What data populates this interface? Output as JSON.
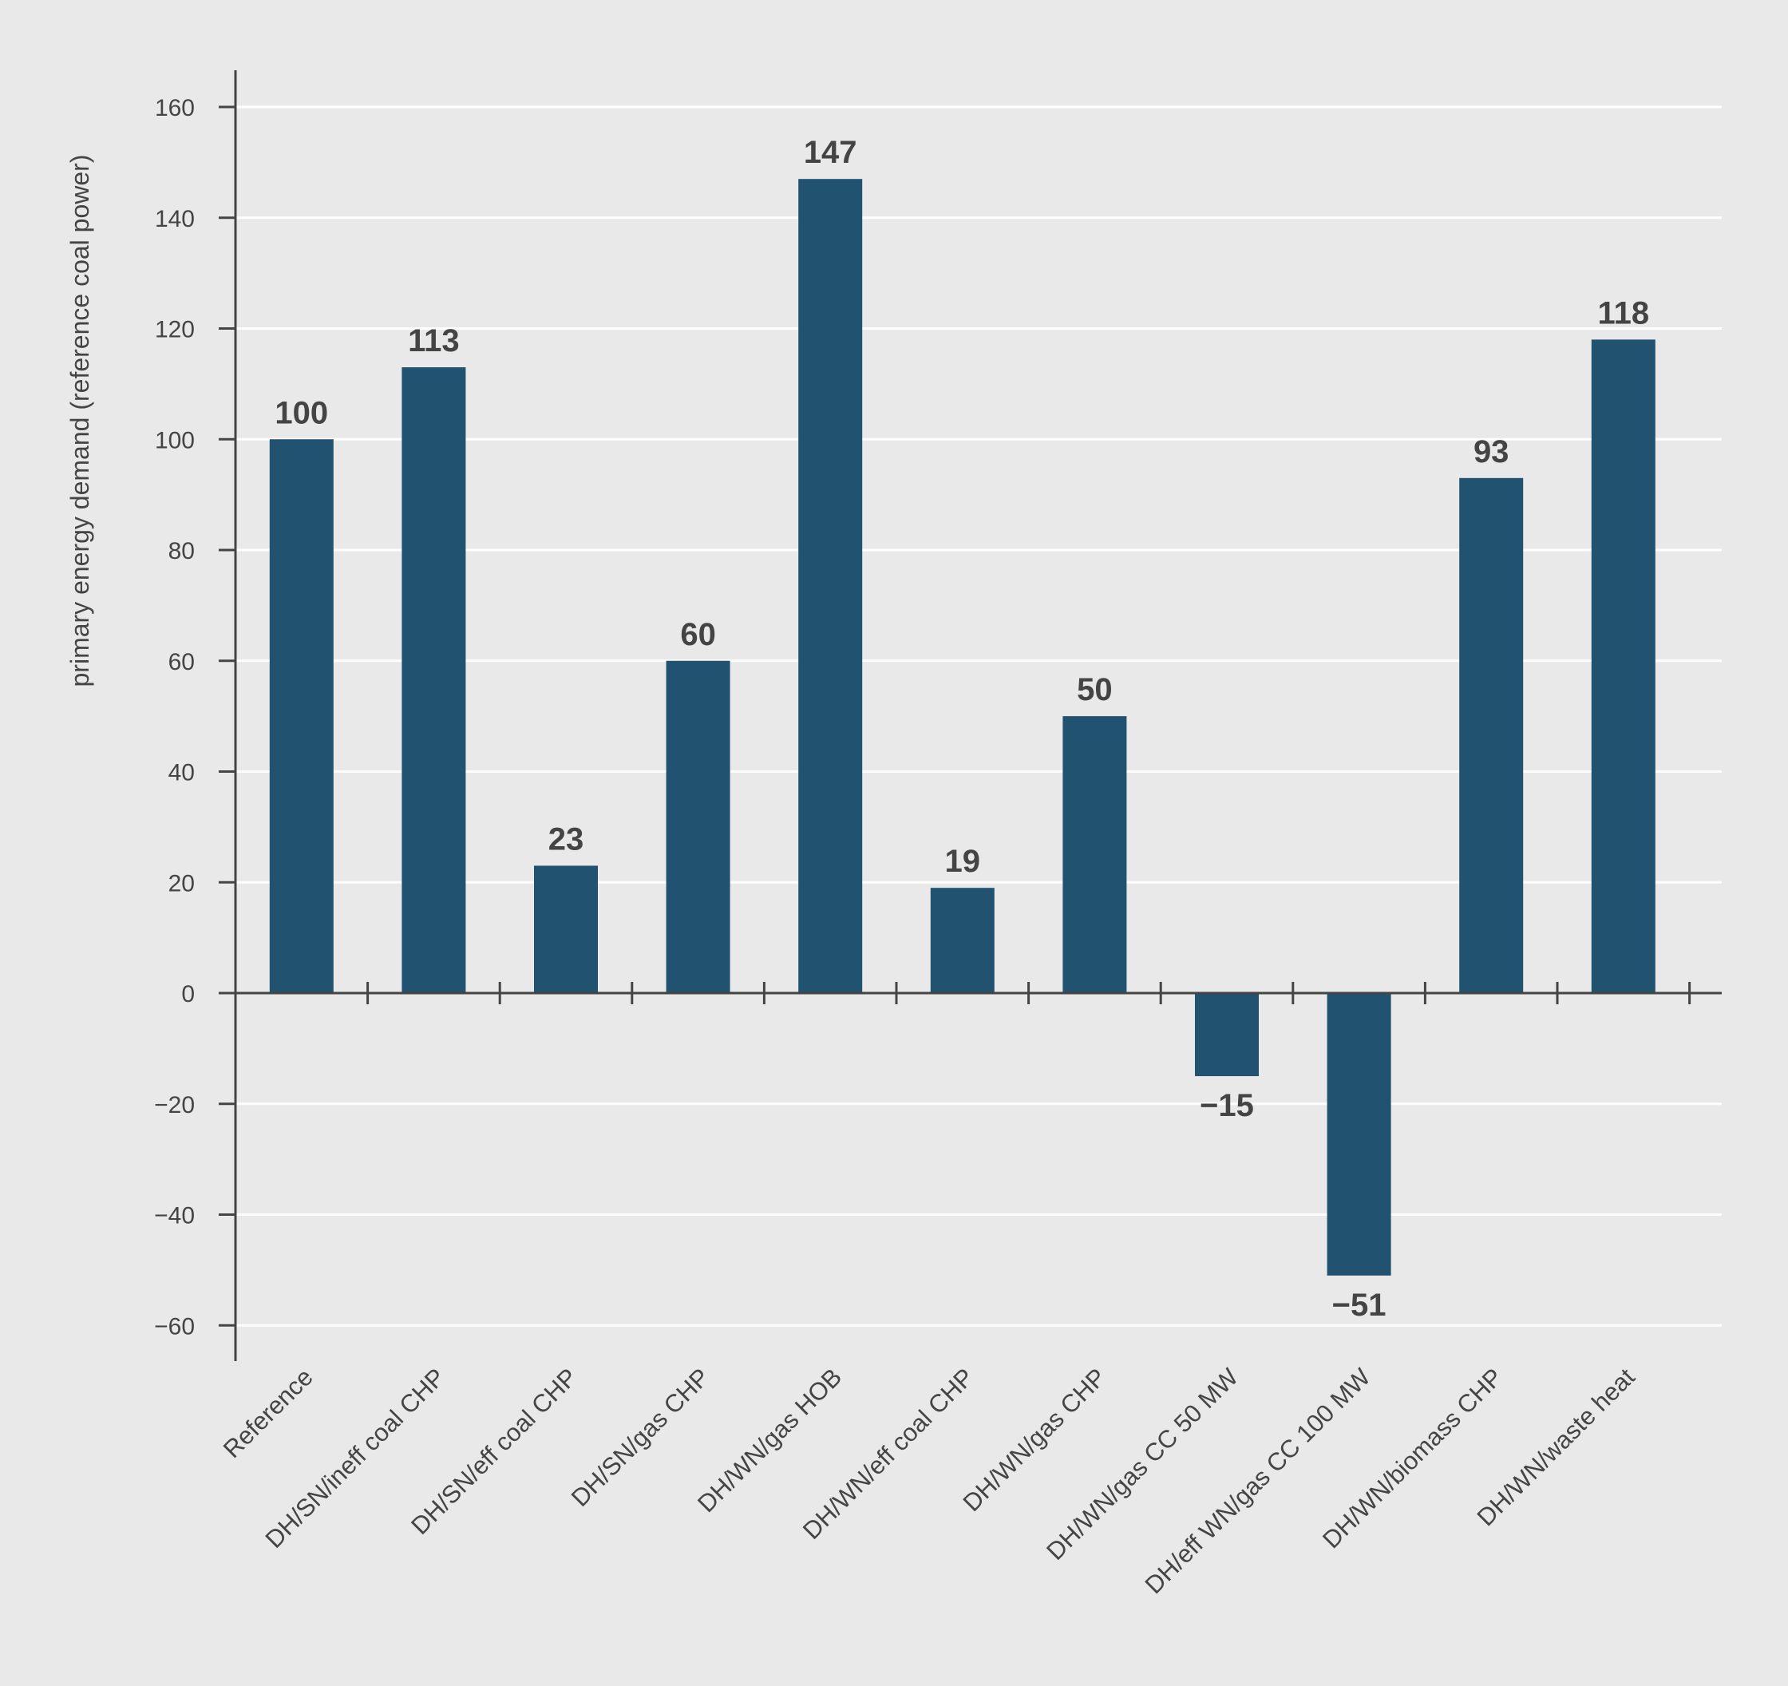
{
  "chart_data": {
    "type": "bar",
    "title": "",
    "xlabel": "",
    "ylabel": "primary energy demand (reference coal power)",
    "ylim": [
      -66,
      166
    ],
    "yticks": [
      160,
      140,
      120,
      100,
      80,
      60,
      40,
      20,
      0,
      -20,
      -40,
      -60
    ],
    "ytick_labels": [
      "160",
      "140",
      "120",
      "100",
      "80",
      "60",
      "40",
      "20",
      "0",
      "−20",
      "−40",
      "−60"
    ],
    "categories": [
      "Reference",
      "DH/SN/ineff coal CHP",
      "DH/SN/eff coal CHP",
      "DH/SN/gas CHP",
      "DH/WN/gas HOB",
      "DH/WN/eff coal CHP",
      "DH/WN/gas CHP",
      "DH/WN/gas CC 50 MW",
      "DH/eff WN/gas CC 100 MW",
      "DH/WN/biomass CHP",
      "DH/WN/waste heat"
    ],
    "values": [
      100,
      113,
      23,
      60,
      147,
      19,
      50,
      -15,
      -51,
      93,
      118
    ],
    "value_labels": [
      "100",
      "113",
      "23",
      "60",
      "147",
      "19",
      "50",
      "−15",
      "−51",
      "93",
      "118"
    ],
    "grid": true,
    "colors": {
      "bar": "#21526f",
      "grid": "#ffffff",
      "axis": "#444444",
      "text": "#444444",
      "background": "#e9e9e9"
    }
  }
}
